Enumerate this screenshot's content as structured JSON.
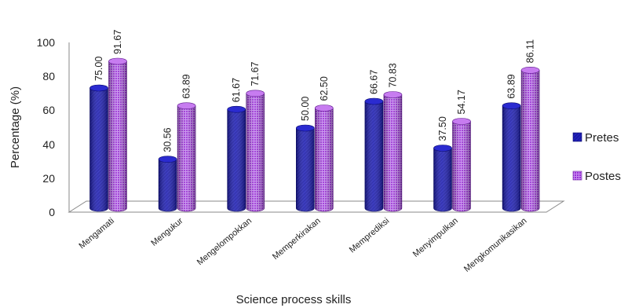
{
  "chart_data": {
    "type": "bar",
    "categories": [
      "Mengamati",
      "Mengukur",
      "Mengelompokkan",
      "Memperkirakan",
      "Memprediksi",
      "Menyimpulkan",
      "Mengkomunikasikan"
    ],
    "series": [
      {
        "name": "Pretes",
        "values": [
          75.0,
          30.56,
          61.67,
          50.0,
          66.67,
          37.5,
          63.89
        ],
        "labels": [
          "75.00",
          "30.56",
          "61.67",
          "50.00",
          "66.67",
          "37.50",
          "63.89"
        ],
        "color": "#1f1fb4"
      },
      {
        "name": "Postes",
        "values": [
          91.67,
          63.89,
          71.67,
          62.5,
          70.83,
          54.17,
          86.11
        ],
        "labels": [
          "91.67",
          "63.89",
          "71.67",
          "62.50",
          "70.83",
          "54.17",
          "86.11"
        ],
        "color": "#b04ad8"
      }
    ],
    "xlabel": "Science process skills",
    "ylabel": "Percentage (%)",
    "ylim": [
      0,
      100
    ],
    "yticks": [
      0,
      20,
      40,
      60,
      80,
      100
    ],
    "ytick_labels": [
      "0",
      "20",
      "40",
      "60",
      "80",
      "100"
    ],
    "legend_position": "right",
    "grid": false,
    "style": "3d-cylinder"
  }
}
